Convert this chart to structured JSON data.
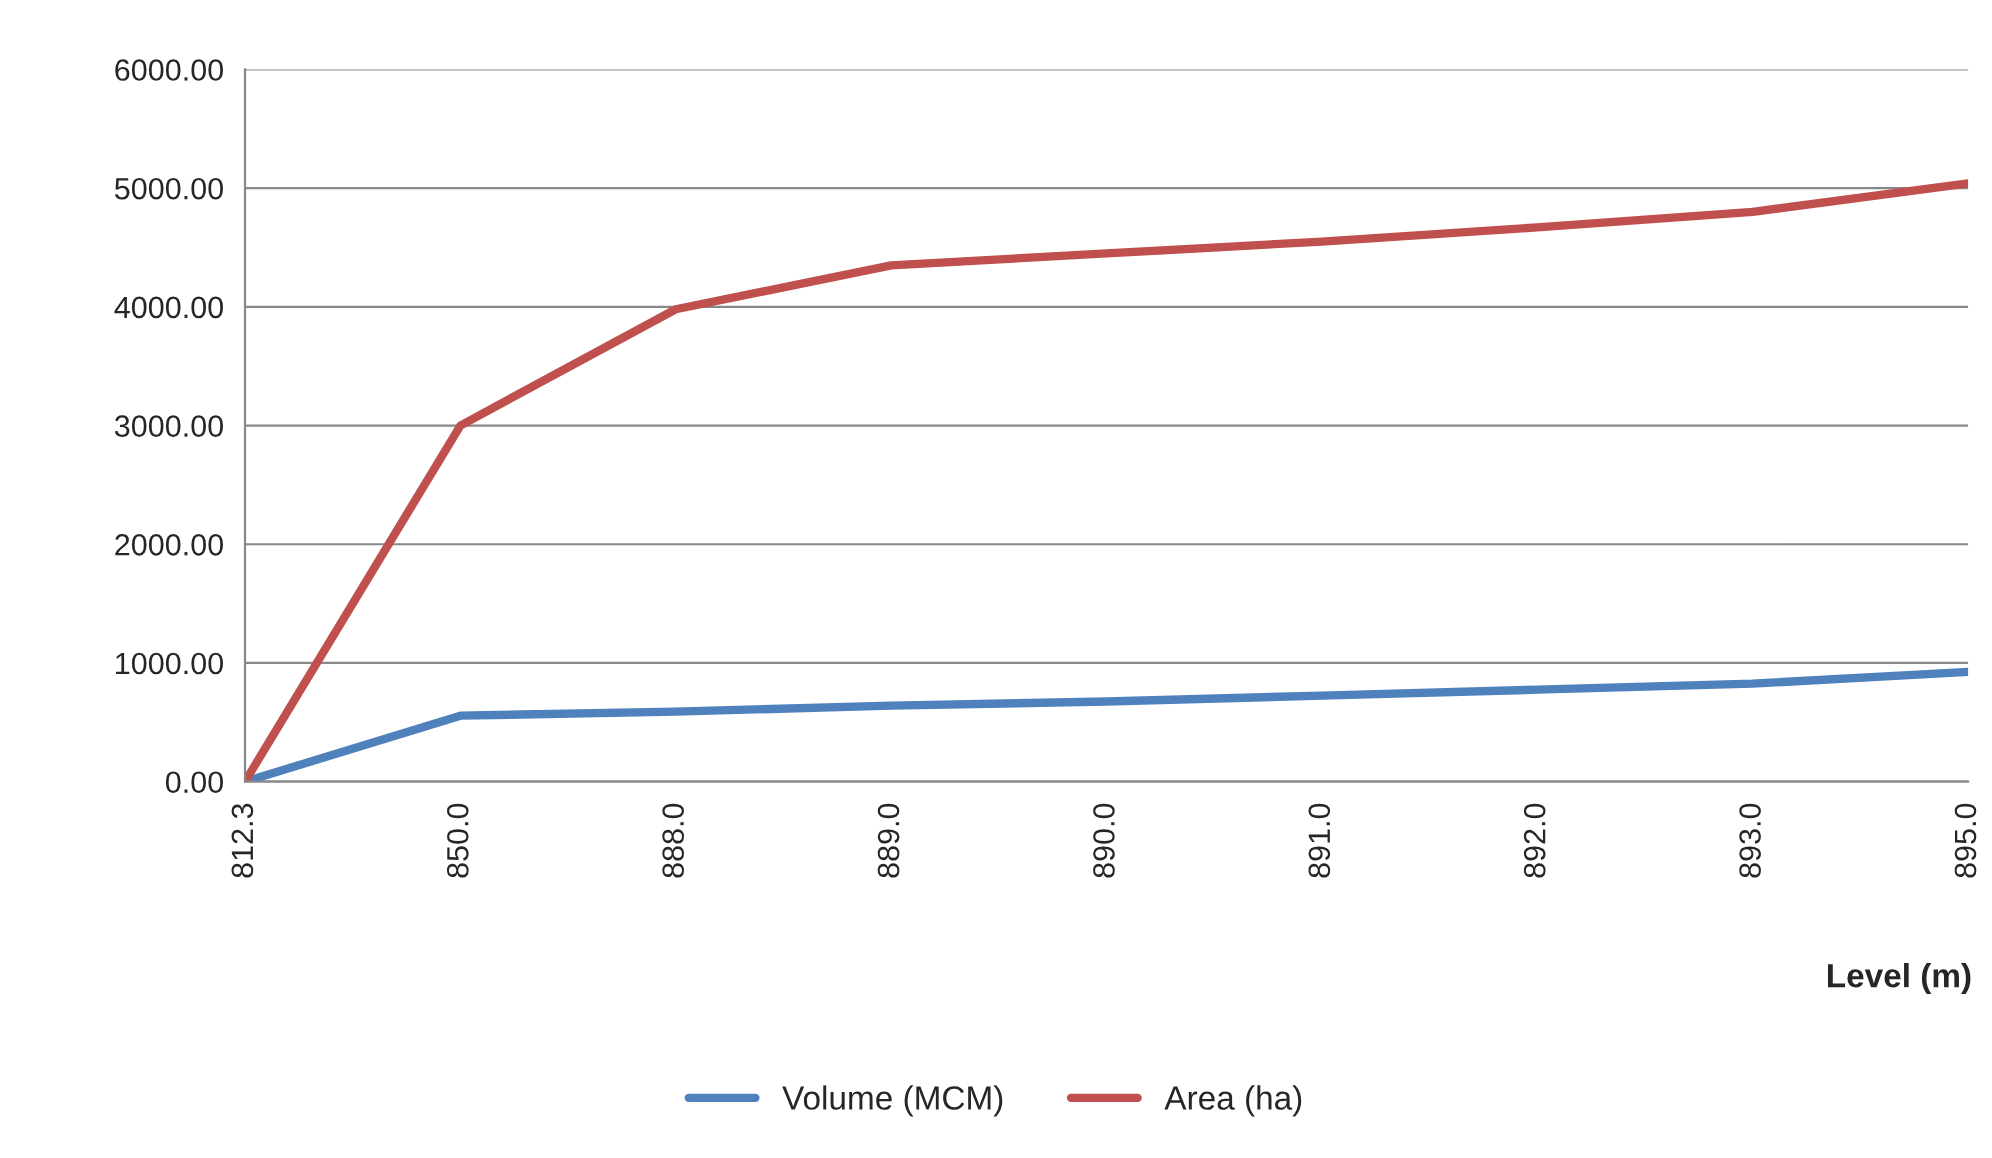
{
  "chart_data": {
    "type": "line",
    "xlabel": "Level (m)",
    "categories": [
      "812.3",
      "850.0",
      "888.0",
      "889.0",
      "890.0",
      "891.0",
      "892.0",
      "893.0",
      "895.0"
    ],
    "series": [
      {
        "name": "Volume (MCM)",
        "color": "#4f81bd",
        "values": [
          0,
          556,
          590,
          640,
          675,
          725,
          775,
          826,
          925
        ]
      },
      {
        "name": "Area (ha)",
        "color": "#c0504d",
        "values": [
          0,
          3000,
          3980,
          4350,
          4450,
          4550,
          4670,
          4800,
          5040
        ]
      }
    ],
    "ylim": [
      0,
      6000
    ],
    "yticks": [
      {
        "value": 0,
        "label": "0.00"
      },
      {
        "value": 1000,
        "label": "1000.00"
      },
      {
        "value": 2000,
        "label": "2000.00"
      },
      {
        "value": 3000,
        "label": "3000.00"
      },
      {
        "value": 4000,
        "label": "4000.00"
      },
      {
        "value": 5000,
        "label": "5000.00"
      },
      {
        "value": 6000,
        "label": "6000.00"
      }
    ],
    "grid": "y",
    "legend": "bottom",
    "marker": "none",
    "line_style": "solid"
  }
}
